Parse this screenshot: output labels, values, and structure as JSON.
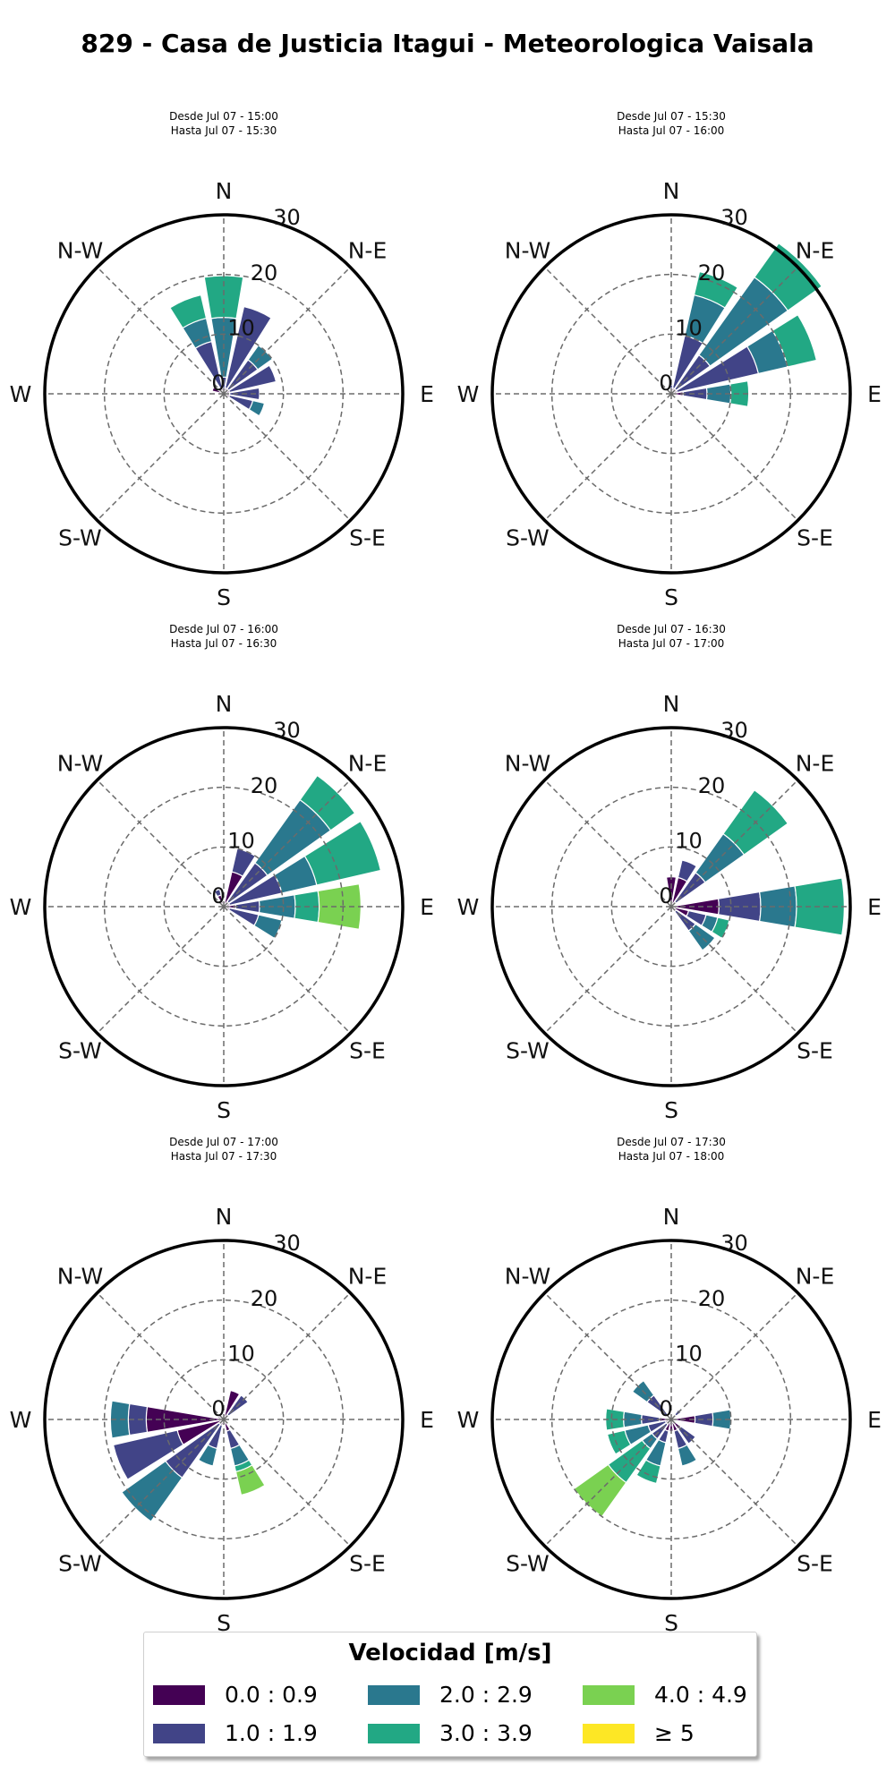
{
  "title": "829 - Casa de Justicia Itagui - Meteorologica Vaisala",
  "legend": {
    "title": "Velocidad [m/s]",
    "items": [
      {
        "label": "0.0 : 0.9",
        "color": "#440154"
      },
      {
        "label": "1.0 : 1.9",
        "color": "#414487"
      },
      {
        "label": "2.0 : 2.9",
        "color": "#2a788e"
      },
      {
        "label": "3.0 : 3.9",
        "color": "#22a884"
      },
      {
        "label": "4.0 : 4.9",
        "color": "#7ad151"
      },
      {
        "label": "≥  5",
        "color": "#fde725"
      }
    ]
  },
  "chart_data": [
    {
      "type": "windrose",
      "subtitle_line1": "Desde Jul 07 - 15:00",
      "subtitle_line2": "Hasta Jul 07 - 15:30",
      "directions": [
        "N",
        "N-E",
        "E",
        "S-E",
        "S",
        "S-W",
        "W",
        "N-W"
      ],
      "radial_ticks": [
        0,
        10,
        20,
        30
      ],
      "rmax": 30,
      "grid": true,
      "sectors": [
        {
          "angle": 0,
          "segments": [
            0.8,
            2.0,
            10.0,
            7.0
          ]
        },
        {
          "angle": 22.5,
          "segments": [
            1.0,
            14.0
          ]
        },
        {
          "angle": 45,
          "segments": [
            1.0,
            6.0,
            3.0
          ]
        },
        {
          "angle": 67.5,
          "segments": [
            1.0,
            8.0
          ]
        },
        {
          "angle": 90,
          "segments": [
            1.0,
            5.0
          ]
        },
        {
          "angle": 112.5,
          "segments": [
            1.0,
            4.0,
            2.0
          ]
        },
        {
          "angle": 337.5,
          "segments": [
            1.0,
            8.0,
            4.0,
            4.0
          ]
        },
        {
          "angle": 292.5,
          "segments": [
            2.0
          ]
        }
      ]
    },
    {
      "type": "windrose",
      "subtitle_line1": "Desde Jul 07 - 15:30",
      "subtitle_line2": "Hasta Jul 07 - 16:00",
      "directions": [
        "N",
        "N-E",
        "E",
        "S-E",
        "S",
        "S-W",
        "W",
        "N-W"
      ],
      "radial_ticks": [
        0,
        10,
        20,
        30
      ],
      "rmax": 30,
      "grid": true,
      "sectors": [
        {
          "angle": 0,
          "segments": [
            0.5,
            1.0
          ]
        },
        {
          "angle": 22.5,
          "segments": [
            1.0,
            9.0,
            7.0,
            4.0
          ]
        },
        {
          "angle": 45,
          "segments": [
            1.0,
            7.0,
            16.0,
            7.0
          ]
        },
        {
          "angle": 67.5,
          "segments": [
            1.0,
            14.0,
            5.0,
            5.0
          ]
        },
        {
          "angle": 90,
          "segments": [
            2.0,
            4.0,
            4.0,
            3.0
          ]
        }
      ]
    },
    {
      "type": "windrose",
      "subtitle_line1": "Desde Jul 07 - 16:00",
      "subtitle_line2": "Hasta Jul 07 - 16:30",
      "directions": [
        "N",
        "N-E",
        "E",
        "S-E",
        "S",
        "S-W",
        "W",
        "N-W"
      ],
      "radial_ticks": [
        0,
        10,
        20,
        30
      ],
      "rmax": 30,
      "grid": true,
      "sectors": [
        {
          "angle": 22.5,
          "segments": [
            6.0,
            4.0
          ]
        },
        {
          "angle": 45,
          "segments": [
            1.0,
            8.0,
            13.0,
            5.0
          ]
        },
        {
          "angle": 67.5,
          "segments": [
            1.0,
            9.0,
            6.0,
            11.0
          ]
        },
        {
          "angle": 90,
          "segments": [
            2.0,
            4.0,
            6.0,
            4.0,
            7.0
          ]
        },
        {
          "angle": 112.5,
          "segments": [
            1.0,
            5.0,
            4.0
          ]
        },
        {
          "angle": 337.5,
          "segments": [
            2.0,
            1.0
          ]
        }
      ]
    },
    {
      "type": "windrose",
      "subtitle_line1": "Desde Jul 07 - 16:30",
      "subtitle_line2": "Hasta Jul 07 - 17:00",
      "directions": [
        "N",
        "N-E",
        "E",
        "S-E",
        "S",
        "S-W",
        "W",
        "N-W"
      ],
      "radial_ticks": [
        0,
        10,
        20,
        30
      ],
      "rmax": 30,
      "grid": true,
      "sectors": [
        {
          "angle": 0,
          "segments": [
            5.0
          ]
        },
        {
          "angle": 22.5,
          "segments": [
            5.0,
            3.0
          ]
        },
        {
          "angle": 45,
          "segments": [
            1.0,
            6.0,
            8.0,
            9.0
          ]
        },
        {
          "angle": 90,
          "segments": [
            8.0,
            7.0,
            6.0,
            8.0
          ]
        },
        {
          "angle": 112.5,
          "segments": [
            3.0,
            3.0,
            2.0,
            2.0
          ]
        },
        {
          "angle": 135,
          "segments": [
            1.0,
            4.0,
            4.0
          ]
        }
      ]
    },
    {
      "type": "windrose",
      "subtitle_line1": "Desde Jul 07 - 17:00",
      "subtitle_line2": "Hasta Jul 07 - 17:30",
      "directions": [
        "N",
        "N-E",
        "E",
        "S-E",
        "S",
        "S-W",
        "W",
        "N-W"
      ],
      "radial_ticks": [
        0,
        10,
        20,
        30
      ],
      "rmax": 30,
      "grid": true,
      "sectors": [
        {
          "angle": 22.5,
          "segments": [
            5.0
          ]
        },
        {
          "angle": 45,
          "segments": [
            1.0,
            4.0
          ]
        },
        {
          "angle": 157.5,
          "segments": [
            2.0,
            3.0,
            3.0,
            1.0,
            4.0
          ]
        },
        {
          "angle": 202.5,
          "segments": [
            1.0,
            4.0,
            3.0
          ]
        },
        {
          "angle": 225,
          "segments": [
            1.0,
            11.0,
            9.0
          ]
        },
        {
          "angle": 247.5,
          "segments": [
            8.0,
            11.0
          ]
        },
        {
          "angle": 270,
          "segments": [
            13.0,
            3.0,
            3.0
          ]
        },
        {
          "angle": 292.5,
          "segments": [
            1.0
          ]
        }
      ]
    },
    {
      "type": "windrose",
      "subtitle_line1": "Desde Jul 07 - 17:30",
      "subtitle_line2": "Hasta Jul 07 - 18:00",
      "directions": [
        "N",
        "N-E",
        "E",
        "S-E",
        "S",
        "S-W",
        "W",
        "N-W"
      ],
      "radial_ticks": [
        0,
        10,
        20,
        30
      ],
      "rmax": 30,
      "grid": true,
      "sectors": [
        {
          "angle": 45,
          "segments": [
            1.0,
            1.0
          ]
        },
        {
          "angle": 90,
          "segments": [
            4.0,
            3.0,
            3.0
          ]
        },
        {
          "angle": 135,
          "segments": [
            2.0,
            3.0
          ]
        },
        {
          "angle": 157.5,
          "segments": [
            2.0,
            3.0,
            3.0
          ]
        },
        {
          "angle": 180,
          "segments": [
            2.0
          ]
        },
        {
          "angle": 202.5,
          "segments": [
            2.0,
            2.0,
            4.0,
            3.0
          ]
        },
        {
          "angle": 225,
          "segments": [
            1.0,
            3.0,
            2.0,
            7.0,
            7.0
          ]
        },
        {
          "angle": 247.5,
          "segments": [
            1.0,
            3.0,
            4.0,
            3.0
          ]
        },
        {
          "angle": 270,
          "segments": [
            2.0,
            3.0,
            3.0,
            3.0
          ]
        },
        {
          "angle": 315,
          "segments": [
            1.0,
            4.0,
            3.0
          ]
        }
      ]
    }
  ]
}
